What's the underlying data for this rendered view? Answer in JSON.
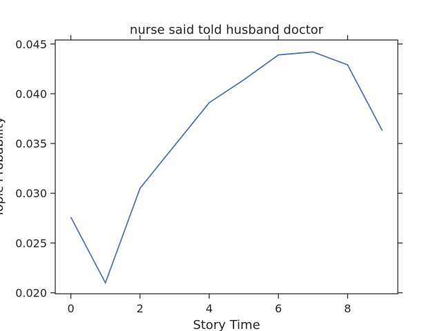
{
  "chart_data": {
    "type": "line",
    "title": "nurse said told husband doctor",
    "xlabel": "Story Time",
    "ylabel": "Topic Probability",
    "x": [
      0,
      1,
      2,
      3,
      4,
      5,
      6,
      7,
      8,
      9
    ],
    "series": [
      {
        "values": [
          0.0276,
          0.021,
          0.0305,
          0.0348,
          0.0391,
          0.0414,
          0.0439,
          0.0442,
          0.0429,
          0.0363
        ],
        "color": "#4c72b0"
      }
    ],
    "xlim": [
      -0.45,
      9.45
    ],
    "ylim": [
      0.0199,
      0.0454
    ],
    "xticks": [
      0,
      2,
      4,
      6,
      8
    ],
    "yticks": [
      0.02,
      0.025,
      0.03,
      0.035,
      0.04,
      0.045
    ],
    "xtick_labels": [
      "0",
      "2",
      "4",
      "6",
      "8"
    ],
    "ytick_labels": [
      "0.020",
      "0.025",
      "0.030",
      "0.035",
      "0.040",
      "0.045"
    ],
    "grid": false,
    "legend": "none"
  }
}
